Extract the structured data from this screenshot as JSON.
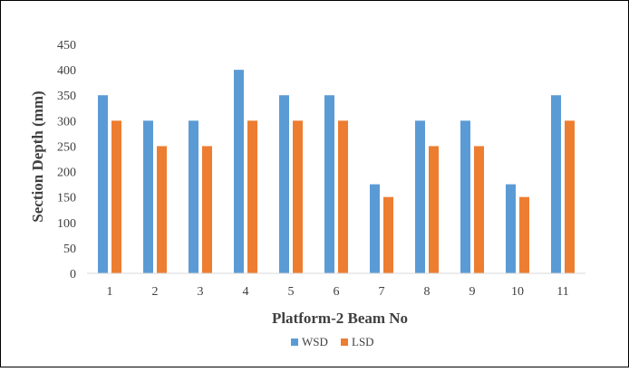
{
  "chart_data": {
    "type": "bar",
    "categories": [
      "1",
      "2",
      "3",
      "4",
      "5",
      "6",
      "7",
      "8",
      "9",
      "10",
      "11"
    ],
    "series": [
      {
        "name": "WSD",
        "color": "#5b9bd5",
        "values": [
          350,
          300,
          300,
          400,
          350,
          350,
          175,
          300,
          300,
          175,
          350
        ]
      },
      {
        "name": "LSD",
        "color": "#ed7d31",
        "values": [
          300,
          250,
          250,
          300,
          300,
          300,
          150,
          250,
          250,
          150,
          300
        ]
      }
    ],
    "xlabel": "Platform-2 Beam No",
    "ylabel": "Section Depth (mm)",
    "ylim": [
      0,
      450
    ],
    "yticks": [
      0,
      50,
      100,
      150,
      200,
      250,
      300,
      350,
      400,
      450
    ],
    "grid": false,
    "legend_position": "bottom"
  }
}
